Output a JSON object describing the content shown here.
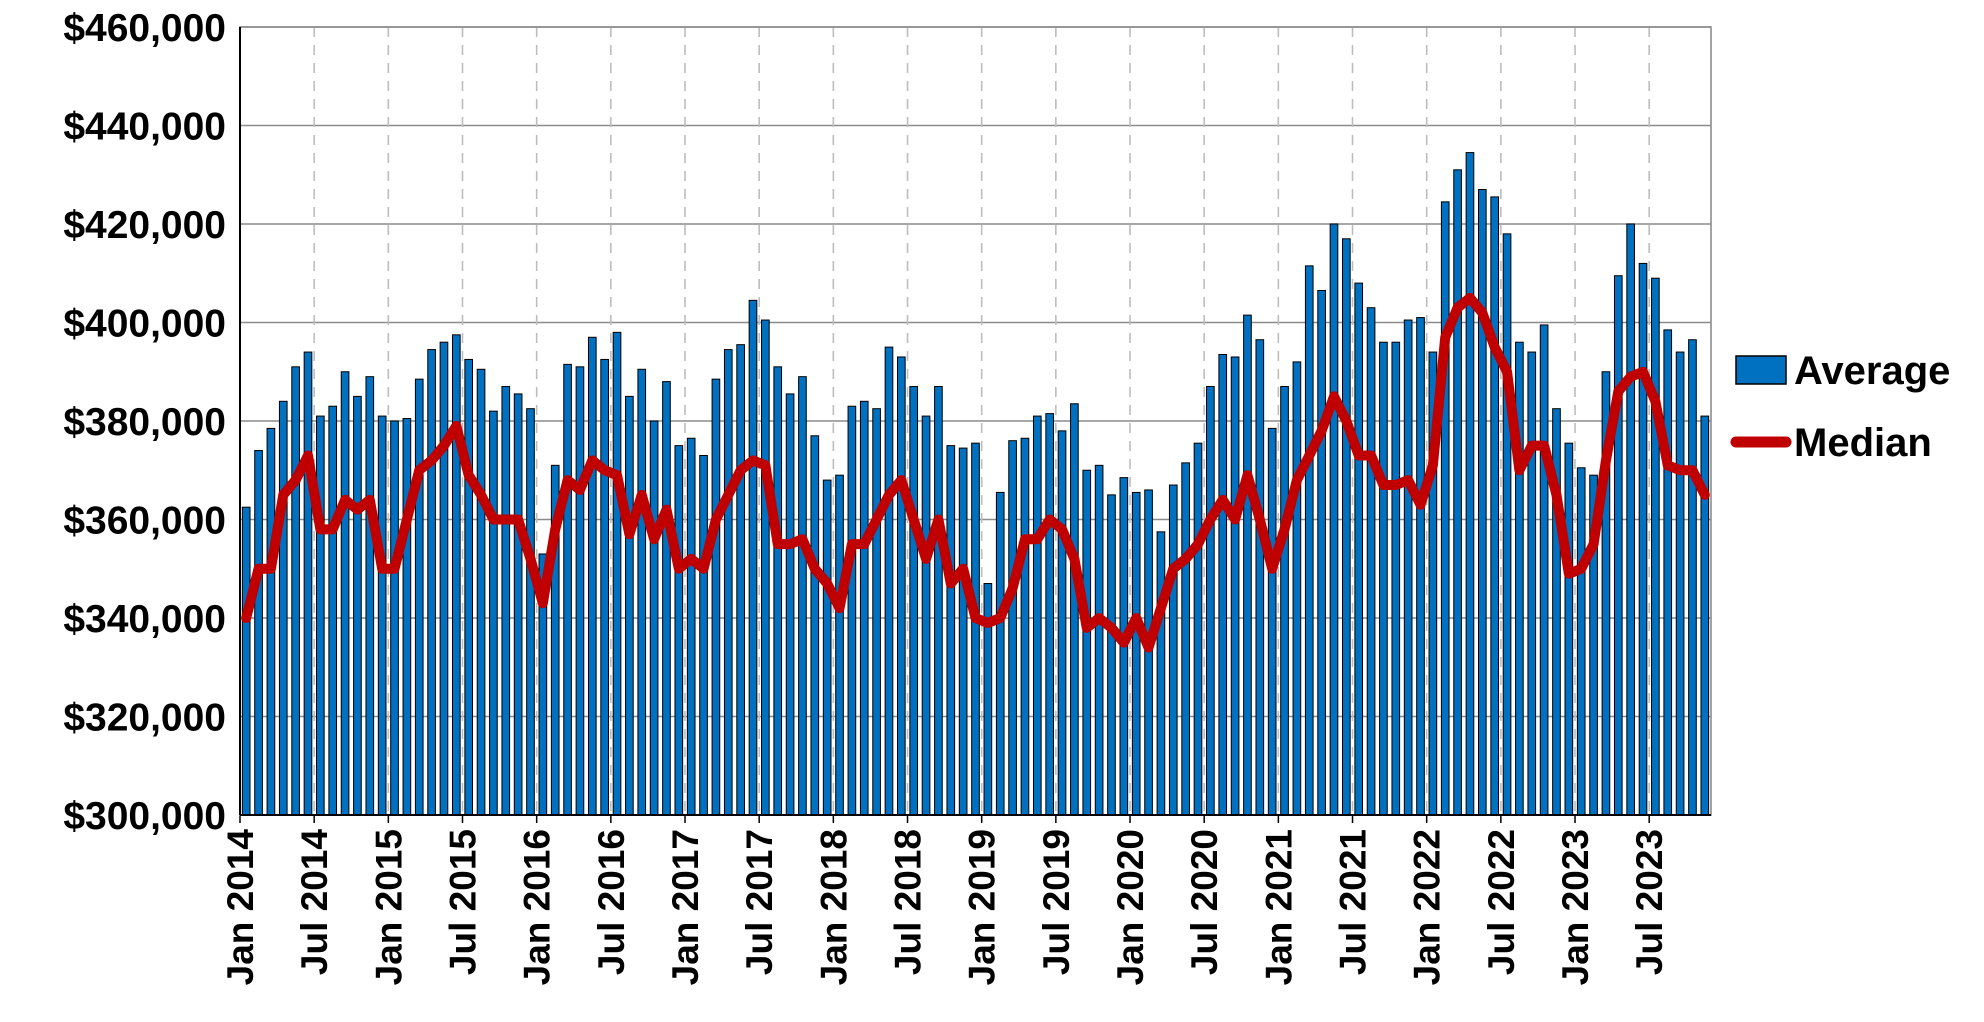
{
  "chart_data": {
    "type": "bar",
    "categories": [
      "Jan 2014",
      null,
      null,
      null,
      null,
      null,
      "Jul 2014",
      null,
      null,
      null,
      null,
      null,
      "Jan 2015",
      null,
      null,
      null,
      null,
      null,
      "Jul 2015",
      null,
      null,
      null,
      null,
      null,
      "Jan 2016",
      null,
      null,
      null,
      null,
      null,
      "Jul 2016",
      null,
      null,
      null,
      null,
      null,
      "Jan 2017",
      null,
      null,
      null,
      null,
      null,
      "Jul 2017",
      null,
      null,
      null,
      null,
      null,
      "Jan 2018",
      null,
      null,
      null,
      null,
      null,
      "Jul 2018",
      null,
      null,
      null,
      null,
      null,
      "Jan 2019",
      null,
      null,
      null,
      null,
      null,
      "Jul 2019",
      null,
      null,
      null,
      null,
      null,
      "Jan 2020",
      null,
      null,
      null,
      null,
      null,
      "Jul 2020",
      null,
      null,
      null,
      null,
      null,
      "Jan 2021",
      null,
      null,
      null,
      null,
      null,
      "Jul 2021",
      null,
      null,
      null,
      null,
      null,
      "Jan 2022",
      null,
      null,
      null,
      null,
      null,
      "Jul 2022",
      null,
      null,
      null,
      null,
      null,
      "Jan 2023",
      null,
      null,
      null,
      null,
      null,
      "Jul 2023",
      null,
      null,
      null,
      null
    ],
    "series": [
      {
        "name": "Average",
        "type": "bar",
        "color": "#0070c0",
        "values": [
          362500,
          374000,
          378500,
          384000,
          391000,
          394000,
          381000,
          383000,
          390000,
          385000,
          389000,
          381000,
          380000,
          380500,
          388500,
          394500,
          396000,
          397500,
          392500,
          390500,
          382000,
          387000,
          385500,
          382500,
          353000,
          371000,
          391500,
          391000,
          397000,
          392500,
          398000,
          385000,
          390500,
          380000,
          388000,
          375000,
          376500,
          373000,
          388500,
          394500,
          395500,
          404500,
          400500,
          391000,
          385500,
          389000,
          377000,
          368000,
          369000,
          383000,
          384000,
          382500,
          395000,
          393000,
          387000,
          381000,
          387000,
          375000,
          374500,
          375500,
          347000,
          365500,
          376000,
          376500,
          381000,
          381500,
          378000,
          383500,
          370000,
          371000,
          365000,
          368500,
          365500,
          366000,
          357500,
          367000,
          371500,
          375500,
          387000,
          393500,
          393000,
          401500,
          396500,
          378500,
          387000,
          392000,
          411500,
          406500,
          420000,
          417000,
          408000,
          403000,
          396000,
          396000,
          400500,
          401000,
          394000,
          424500,
          431000,
          434500,
          427000,
          425500,
          418000,
          396000,
          394000,
          399500,
          382500,
          375500,
          370500,
          369000,
          390000,
          409500,
          420000,
          412000,
          409000,
          398500,
          394000,
          396500,
          381000
        ]
      },
      {
        "name": "Median",
        "type": "line",
        "color": "#c00000",
        "values": [
          340000,
          350000,
          350000,
          365000,
          368000,
          373000,
          358000,
          358000,
          364000,
          362000,
          364000,
          350000,
          350000,
          360000,
          370000,
          372000,
          375000,
          379000,
          369000,
          365000,
          360000,
          360000,
          360000,
          352000,
          343000,
          358000,
          368000,
          366000,
          372000,
          370000,
          369000,
          357000,
          365000,
          356000,
          362000,
          350000,
          352000,
          350000,
          360000,
          365000,
          370000,
          372000,
          371000,
          355000,
          355000,
          356000,
          350000,
          347000,
          342000,
          355000,
          355000,
          360000,
          365000,
          368000,
          360000,
          352000,
          360000,
          347000,
          350000,
          340000,
          339000,
          340000,
          346000,
          356000,
          356000,
          360000,
          358000,
          352000,
          338000,
          340000,
          338000,
          335000,
          340000,
          334000,
          342000,
          350000,
          352000,
          355000,
          360000,
          364000,
          360000,
          369000,
          360000,
          350000,
          358000,
          368000,
          373000,
          378000,
          385000,
          380000,
          373000,
          373000,
          367000,
          367000,
          368000,
          363000,
          371000,
          397000,
          403000,
          405000,
          402000,
          395000,
          390000,
          370000,
          375000,
          375000,
          365000,
          349000,
          350000,
          355000,
          372000,
          386000,
          389000,
          390000,
          384000,
          371000,
          370000,
          370000,
          365000
        ]
      }
    ],
    "ylim": [
      300000,
      460000
    ],
    "yticks": [
      {
        "value": 300000,
        "label": "$300,000"
      },
      {
        "value": 320000,
        "label": "$320,000"
      },
      {
        "value": 340000,
        "label": "$340,000"
      },
      {
        "value": 360000,
        "label": "$360,000"
      },
      {
        "value": 380000,
        "label": "$380,000"
      },
      {
        "value": 400000,
        "label": "$400,000"
      },
      {
        "value": 420000,
        "label": "$420,000"
      },
      {
        "value": 440000,
        "label": "$440,000"
      },
      {
        "value": 460000,
        "label": "$460,000"
      }
    ],
    "grid": true,
    "legend": "right"
  }
}
